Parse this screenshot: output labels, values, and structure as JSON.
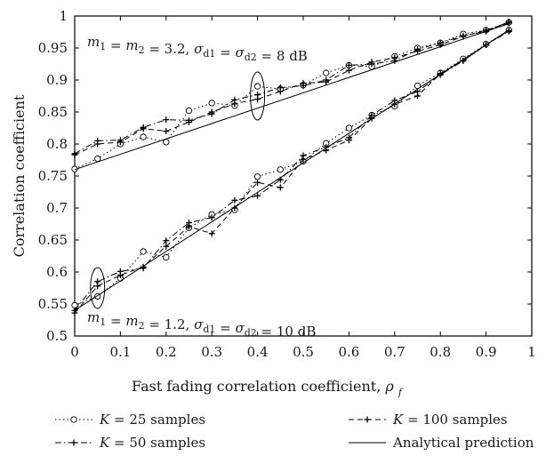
{
  "chart_data": {
    "type": "line",
    "xlabel": "Fast fading correlation coefficient, ρ_f",
    "ylabel": "Correlation coefficient",
    "xlim": [
      0,
      1
    ],
    "ylim": [
      0.5,
      1
    ],
    "xticks": [
      0,
      0.1,
      0.2,
      0.3,
      0.4,
      0.5,
      0.6,
      0.7,
      0.8,
      0.9,
      1
    ],
    "yticks": [
      0.5,
      0.55,
      0.6,
      0.65,
      0.7,
      0.75,
      0.8,
      0.85,
      0.9,
      0.95,
      1
    ],
    "grid": false,
    "legend_position": "bottom, outside plot",
    "annotations": [
      {
        "text": "m₁ = m₂ = 3.2, σd1 = σd2 = 8 dB",
        "ellipse_at": {
          "x": 0.4,
          "y": 0.875
        }
      },
      {
        "text": "m₁ = m₂ = 1.2, σd1 = σd2 = 10 dB",
        "ellipse_at": {
          "x": 0.05,
          "y": 0.575
        }
      }
    ],
    "groups": [
      {
        "annotation_index": 0,
        "series": [
          {
            "name": "K = 25 samples",
            "style": "dotted-circle",
            "x": [
              0,
              0.05,
              0.1,
              0.15,
              0.2,
              0.25,
              0.3,
              0.35,
              0.4,
              0.45,
              0.5,
              0.55,
              0.6,
              0.65,
              0.7,
              0.75,
              0.8,
              0.85,
              0.9,
              0.95
            ],
            "y": [
              0.761,
              0.777,
              0.8,
              0.811,
              0.803,
              0.852,
              0.864,
              0.86,
              0.89,
              0.886,
              0.892,
              0.911,
              0.923,
              0.921,
              0.937,
              0.95,
              0.958,
              0.972,
              0.978,
              0.99
            ]
          },
          {
            "name": "K = 50 samples",
            "style": "dashdot-plus",
            "x": [
              0,
              0.05,
              0.1,
              0.15,
              0.2,
              0.25,
              0.3,
              0.35,
              0.4,
              0.45,
              0.5,
              0.55,
              0.6,
              0.65,
              0.7,
              0.75,
              0.8,
              0.85,
              0.9,
              0.95
            ],
            "y": [
              0.785,
              0.805,
              0.806,
              0.826,
              0.838,
              0.837,
              0.847,
              0.869,
              0.877,
              0.888,
              0.891,
              0.9,
              0.923,
              0.925,
              0.93,
              0.948,
              0.958,
              0.969,
              0.976,
              0.991
            ]
          },
          {
            "name": "K = 100 samples",
            "style": "dashed-plus",
            "x": [
              0,
              0.05,
              0.1,
              0.15,
              0.2,
              0.25,
              0.3,
              0.35,
              0.4,
              0.45,
              0.5,
              0.55,
              0.6,
              0.65,
              0.7,
              0.75,
              0.8,
              0.85,
              0.9,
              0.95
            ],
            "y": [
              0.783,
              0.8,
              0.803,
              0.824,
              0.82,
              0.834,
              0.85,
              0.863,
              0.87,
              0.882,
              0.895,
              0.897,
              0.915,
              0.928,
              0.935,
              0.945,
              0.955,
              0.968,
              0.978,
              0.989
            ]
          },
          {
            "name": "Analytical prediction",
            "style": "solid",
            "x": [
              0,
              0.95
            ],
            "y": [
              0.76,
              0.988
            ]
          }
        ]
      },
      {
        "annotation_index": 1,
        "series": [
          {
            "name": "K = 25 samples",
            "style": "dotted-circle",
            "x": [
              0,
              0.05,
              0.1,
              0.15,
              0.2,
              0.25,
              0.3,
              0.35,
              0.4,
              0.45,
              0.5,
              0.55,
              0.6,
              0.65,
              0.7,
              0.75,
              0.8,
              0.85,
              0.9,
              0.95
            ],
            "y": [
              0.548,
              0.562,
              0.59,
              0.632,
              0.623,
              0.669,
              0.69,
              0.697,
              0.749,
              0.76,
              0.773,
              0.801,
              0.825,
              0.845,
              0.859,
              0.891,
              0.911,
              0.933,
              0.956,
              0.978
            ]
          },
          {
            "name": "K = 50 samples",
            "style": "dashdot-plus",
            "x": [
              0,
              0.05,
              0.1,
              0.15,
              0.2,
              0.25,
              0.3,
              0.35,
              0.4,
              0.45,
              0.5,
              0.55,
              0.6,
              0.65,
              0.7,
              0.75,
              0.8,
              0.85,
              0.9,
              0.95
            ],
            "y": [
              0.54,
              0.585,
              0.601,
              0.606,
              0.649,
              0.677,
              0.685,
              0.712,
              0.719,
              0.744,
              0.782,
              0.795,
              0.81,
              0.845,
              0.868,
              0.882,
              0.908,
              0.93,
              0.955,
              0.976
            ]
          },
          {
            "name": "K = 100 samples",
            "style": "dashed-plus",
            "x": [
              0,
              0.05,
              0.1,
              0.15,
              0.2,
              0.25,
              0.3,
              0.35,
              0.4,
              0.45,
              0.5,
              0.55,
              0.6,
              0.65,
              0.7,
              0.75,
              0.8,
              0.85,
              0.9,
              0.95
            ],
            "y": [
              0.536,
              0.578,
              0.595,
              0.608,
              0.64,
              0.671,
              0.66,
              0.7,
              0.74,
              0.732,
              0.776,
              0.79,
              0.806,
              0.84,
              0.862,
              0.875,
              0.91,
              0.93,
              0.955,
              0.977
            ]
          },
          {
            "name": "Analytical prediction",
            "style": "solid",
            "x": [
              0,
              0.95
            ],
            "y": [
              0.54,
              0.978
            ]
          }
        ]
      }
    ],
    "legend": [
      {
        "label": "K = 25 samples",
        "style": "dotted-circle"
      },
      {
        "label": "K = 50 samples",
        "style": "dashdot-plus"
      },
      {
        "label": "K = 100 samples",
        "style": "dashed-plus"
      },
      {
        "label": "Analytical prediction",
        "style": "solid"
      }
    ]
  }
}
